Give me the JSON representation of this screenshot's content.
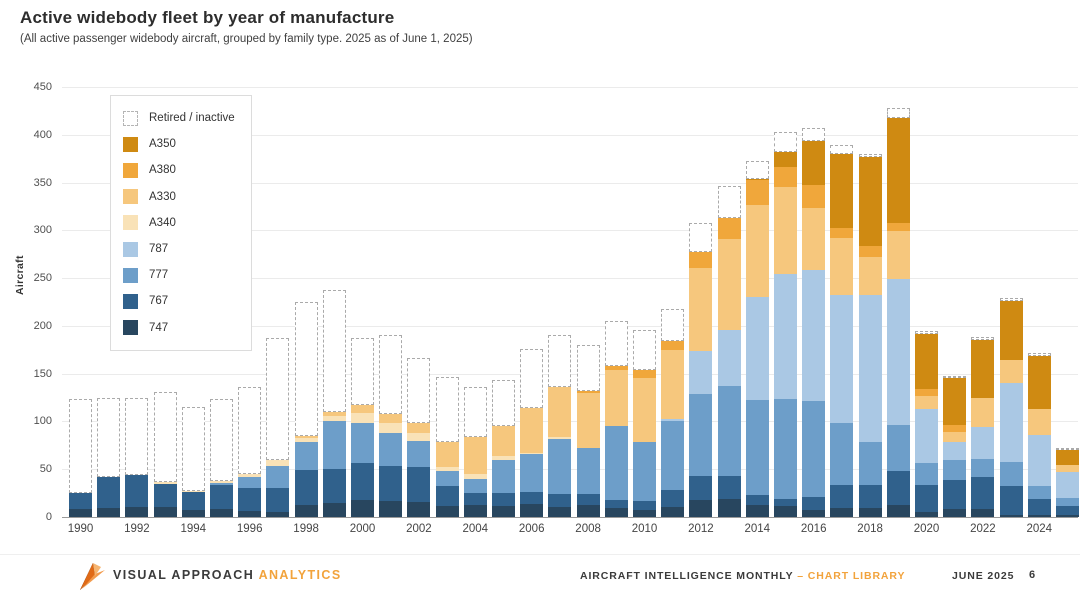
{
  "title": "Active widebody fleet by year of manufacture",
  "subtitle": "(All active passenger widebody aircraft, grouped by family type.  2025 as of June 1, 2025)",
  "footer": {
    "brand": "VISUAL APPROACH",
    "brand_suffix": "ANALYTICS",
    "publication": "AIRCRAFT INTELLIGENCE MONTHLY",
    "separator": "–",
    "section": "CHART LIBRARY",
    "date": "JUNE 2025",
    "page": "6"
  },
  "colors": {
    "accent_orange": "#F2A33C",
    "grid": "#ebebeb",
    "axis": "#9a9a9a",
    "retired_border": "#aaaaaa"
  },
  "chart_data": {
    "type": "bar",
    "stacked": true,
    "title": "Active widebody fleet by year of manufacture",
    "xlabel": "",
    "ylabel": "Aircraft",
    "ylim": [
      0,
      450
    ],
    "ytick_step": 50,
    "grid": true,
    "legend_position": "upper-left-inside",
    "xtick_every": 2,
    "categories": [
      1990,
      1991,
      1992,
      1993,
      1994,
      1995,
      1996,
      1997,
      1998,
      1999,
      2000,
      2001,
      2002,
      2003,
      2004,
      2005,
      2006,
      2007,
      2008,
      2009,
      2010,
      2011,
      2012,
      2013,
      2014,
      2015,
      2016,
      2017,
      2018,
      2019,
      2020,
      2021,
      2022,
      2023,
      2024,
      2025
    ],
    "series": [
      {
        "name": "747",
        "color": "#28465F",
        "values": [
          8,
          9,
          10,
          10,
          7,
          8,
          6,
          5,
          13,
          15,
          18,
          17,
          16,
          12,
          13,
          12,
          14,
          10,
          13,
          9,
          7,
          10,
          18,
          19,
          13,
          11,
          7,
          9,
          9,
          13,
          5,
          8,
          8,
          2,
          2,
          2
        ]
      },
      {
        "name": "767",
        "color": "#30618C",
        "values": [
          17,
          33,
          34,
          25,
          19,
          26,
          24,
          25,
          36,
          35,
          38,
          36,
          36,
          20,
          12,
          13,
          12,
          14,
          11,
          9,
          10,
          18,
          25,
          24,
          10,
          8,
          14,
          24,
          24,
          35,
          28,
          31,
          34,
          30,
          17,
          10
        ]
      },
      {
        "name": "777",
        "color": "#6D9EC9",
        "values": [
          0,
          0,
          0,
          0,
          0,
          2,
          12,
          23,
          30,
          50,
          42,
          35,
          28,
          16,
          15,
          35,
          40,
          58,
          48,
          77,
          62,
          72,
          86,
          94,
          99,
          104,
          100,
          65,
          45,
          48,
          24,
          21,
          19,
          26,
          13,
          8
        ]
      },
      {
        "name": "787",
        "color": "#AAC8E4",
        "values": [
          0,
          0,
          0,
          0,
          0,
          0,
          0,
          0,
          0,
          0,
          0,
          0,
          0,
          0,
          0,
          0,
          0,
          0,
          0,
          0,
          0,
          3,
          45,
          59,
          108,
          131,
          137,
          134,
          154,
          153,
          56,
          19,
          33,
          82,
          54,
          27
        ]
      },
      {
        "name": "A340",
        "color": "#F9E2B7",
        "values": [
          0,
          0,
          0,
          2,
          1,
          2,
          3,
          7,
          4,
          6,
          11,
          10,
          8,
          4,
          5,
          4,
          1,
          2,
          0,
          0,
          0,
          0,
          0,
          0,
          0,
          0,
          0,
          0,
          0,
          0,
          0,
          0,
          0,
          0,
          0,
          0
        ]
      },
      {
        "name": "A330",
        "color": "#F6C77D",
        "values": [
          0,
          0,
          0,
          0,
          0,
          0,
          0,
          0,
          2,
          4,
          8,
          10,
          10,
          26,
          39,
          31,
          47,
          52,
          58,
          59,
          66,
          72,
          87,
          95,
          96,
          91,
          65,
          60,
          40,
          50,
          14,
          10,
          31,
          24,
          27,
          7
        ]
      },
      {
        "name": "A380",
        "color": "#F0A73B",
        "values": [
          0,
          0,
          0,
          0,
          0,
          0,
          0,
          0,
          0,
          0,
          0,
          0,
          0,
          0,
          0,
          0,
          0,
          0,
          2,
          4,
          9,
          9,
          16,
          22,
          27,
          21,
          24,
          10,
          12,
          9,
          7,
          7,
          0,
          0,
          0,
          0
        ]
      },
      {
        "name": "A350",
        "color": "#CF8A12",
        "values": [
          0,
          0,
          0,
          0,
          0,
          0,
          0,
          0,
          0,
          0,
          0,
          0,
          0,
          0,
          0,
          0,
          0,
          0,
          0,
          0,
          0,
          0,
          0,
          0,
          1,
          16,
          47,
          78,
          93,
          110,
          57,
          49,
          60,
          62,
          55,
          16
        ]
      }
    ],
    "retired_series": {
      "name": "Retired / inactive",
      "style": "dashed-outline-white",
      "values": [
        98,
        83,
        81,
        94,
        88,
        86,
        91,
        127,
        140,
        128,
        70,
        82,
        68,
        69,
        52,
        48,
        62,
        54,
        48,
        47,
        42,
        34,
        31,
        33,
        19,
        21,
        13,
        9,
        3,
        10,
        4,
        3,
        3,
        3,
        4,
        2
      ]
    },
    "legend": [
      {
        "label": "Retired / inactive",
        "swatch": "dashed"
      },
      {
        "label": "A350",
        "swatch": "#CF8A12"
      },
      {
        "label": "A380",
        "swatch": "#F0A73B"
      },
      {
        "label": "A330",
        "swatch": "#F6C77D"
      },
      {
        "label": "A340",
        "swatch": "#F9E2B7"
      },
      {
        "label": "787",
        "swatch": "#AAC8E4"
      },
      {
        "label": "777",
        "swatch": "#6D9EC9"
      },
      {
        "label": "767",
        "swatch": "#30618C"
      },
      {
        "label": "747",
        "swatch": "#28465F"
      }
    ]
  }
}
